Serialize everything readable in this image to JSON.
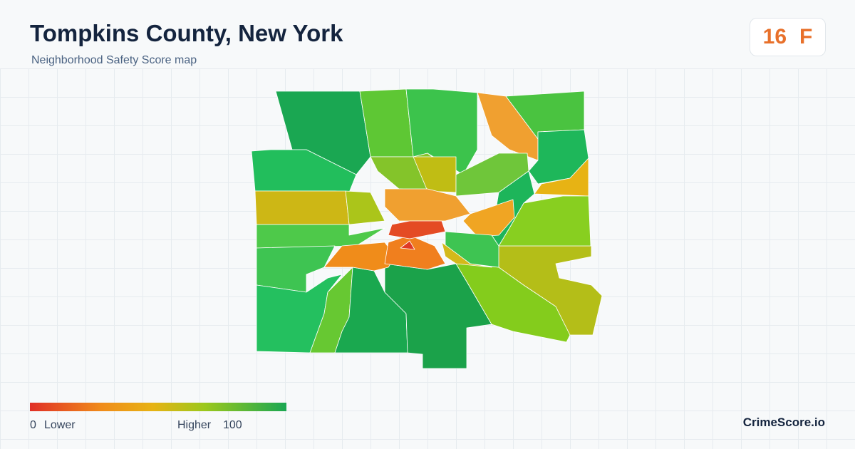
{
  "header": {
    "title": "Tompkins County, New York",
    "subtitle": "Neighborhood Safety Score map"
  },
  "score": {
    "value": 16,
    "grade": "F"
  },
  "legend": {
    "min": 0,
    "min_label": "Lower",
    "max_label": "Higher",
    "max": 100
  },
  "brand": "CrimeScore.io"
}
